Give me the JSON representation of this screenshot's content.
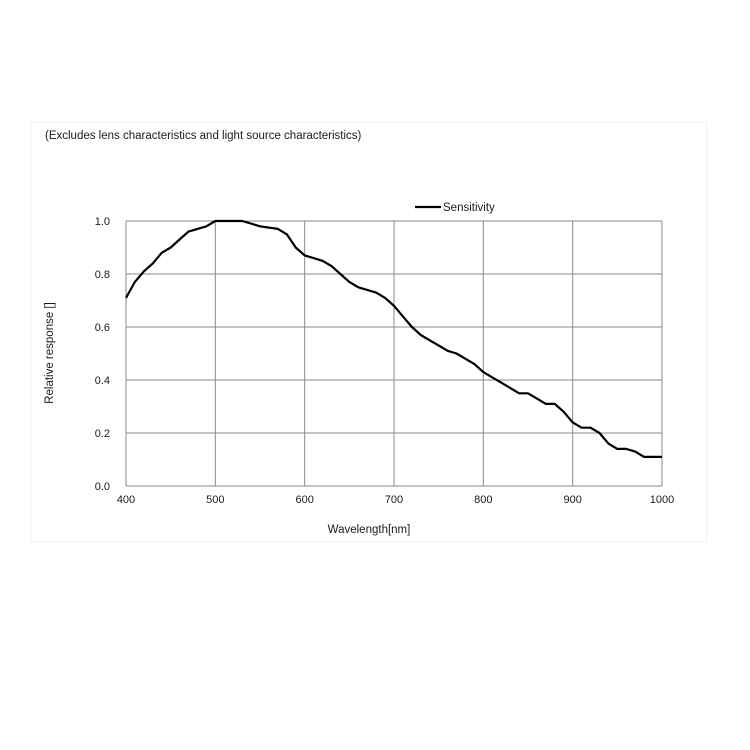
{
  "chart_data": {
    "type": "line",
    "note": "(Excludes lens characteristics and light source characteristics)",
    "xlabel": "Wavelength[nm]",
    "ylabel": "Relative response []",
    "xlim": [
      400,
      1000
    ],
    "ylim": [
      0,
      1.0
    ],
    "x_ticks": [
      "400",
      "500",
      "600",
      "700",
      "800",
      "900",
      "1000"
    ],
    "y_ticks": [
      "0.0",
      "0.2",
      "0.4",
      "0.6",
      "0.8",
      "1.0"
    ],
    "grid": true,
    "legend_position": "top-right",
    "series": [
      {
        "name": "Sensitivity",
        "color": "#000000",
        "x": [
          400,
          410,
          420,
          430,
          440,
          450,
          460,
          470,
          480,
          490,
          500,
          510,
          520,
          530,
          540,
          550,
          560,
          570,
          580,
          590,
          600,
          610,
          620,
          630,
          640,
          650,
          660,
          670,
          680,
          690,
          700,
          710,
          720,
          730,
          740,
          750,
          760,
          770,
          780,
          790,
          800,
          810,
          820,
          830,
          840,
          850,
          860,
          870,
          880,
          890,
          900,
          910,
          920,
          930,
          940,
          950,
          960,
          970,
          980,
          990,
          1000
        ],
        "values": [
          0.71,
          0.77,
          0.81,
          0.84,
          0.88,
          0.9,
          0.93,
          0.96,
          0.97,
          0.98,
          1.0,
          1.0,
          1.0,
          1.0,
          0.99,
          0.98,
          0.975,
          0.97,
          0.95,
          0.9,
          0.87,
          0.86,
          0.85,
          0.83,
          0.8,
          0.77,
          0.75,
          0.74,
          0.73,
          0.71,
          0.68,
          0.64,
          0.6,
          0.57,
          0.55,
          0.53,
          0.51,
          0.5,
          0.48,
          0.46,
          0.43,
          0.41,
          0.39,
          0.37,
          0.35,
          0.35,
          0.33,
          0.31,
          0.31,
          0.28,
          0.24,
          0.22,
          0.22,
          0.2,
          0.16,
          0.14,
          0.14,
          0.13,
          0.11,
          0.11,
          0.11
        ]
      }
    ]
  }
}
